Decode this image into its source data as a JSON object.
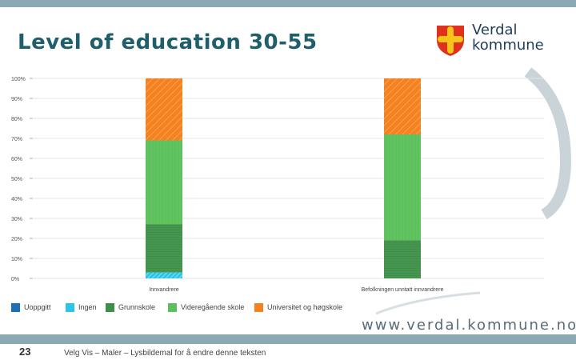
{
  "slide": {
    "title": "Level of education 30-55",
    "page_number": "23",
    "footer_text": "Velg Vis – Maler – Lysbildemal for å endre denne teksten",
    "url": "www.verdal.kommune.no"
  },
  "logo": {
    "line1": "Verdal",
    "line2": "kommune",
    "shield_color": "#e0301e",
    "cross_color": "#f5c518"
  },
  "colors": {
    "accent_bar": "#8aa9b4",
    "title": "#1f5f6b"
  },
  "chart_data": {
    "type": "bar",
    "stacked": true,
    "categories": [
      "Innvandrere",
      "Befolkningen unntatt innvandrere"
    ],
    "series": [
      {
        "name": "Uoppgitt",
        "values": [
          0,
          0
        ],
        "color": "#1f6fb5"
      },
      {
        "name": "Ingen",
        "values": [
          3,
          0
        ],
        "color": "#2ec4e8"
      },
      {
        "name": "Grunnskole",
        "values": [
          24,
          19
        ],
        "color": "#3f8f4a"
      },
      {
        "name": "Videregående skole",
        "values": [
          42,
          53
        ],
        "color": "#5cc05c"
      },
      {
        "name": "Universitet og høgskole",
        "values": [
          31,
          28
        ],
        "color": "#f58220"
      }
    ],
    "y_tick_labels": [
      "0%",
      "10%",
      "20%",
      "30%",
      "40%",
      "50%",
      "60%",
      "70%",
      "80%",
      "90%",
      "100%"
    ],
    "ylim": [
      0,
      100
    ],
    "grid": true,
    "legend_position": "bottom"
  }
}
